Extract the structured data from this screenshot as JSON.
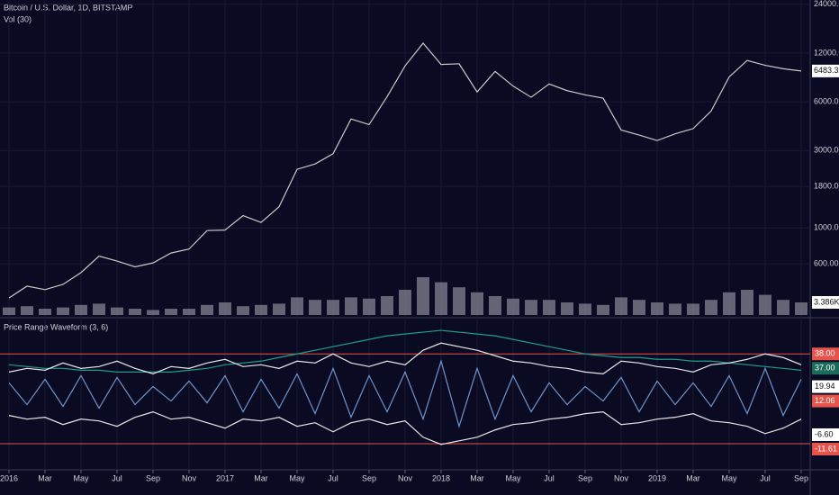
{
  "chart_data": [
    {
      "type": "line",
      "title": "Bitcoin / U.S. Dollar, 1D, BITSTAMP",
      "subtitle": "Vol (30)",
      "log_scale": true,
      "grid": true,
      "categories": [
        "2016",
        null,
        "Mar",
        null,
        "May",
        null,
        "Jul",
        null,
        "Sep",
        null,
        "Nov",
        null,
        "2017",
        null,
        "Mar",
        null,
        "May",
        null,
        "Jul",
        null,
        "Sep",
        null,
        "Nov",
        null,
        "2018",
        null,
        "Mar",
        null,
        "May",
        null,
        "Jul",
        null,
        "Sep",
        null,
        "Nov",
        null,
        "2019",
        null,
        "Mar",
        null,
        "May",
        null,
        "Jul",
        null,
        "Sep"
      ],
      "ylim": [
        290,
        25500
      ],
      "yticks": [
        {
          "value": 24000,
          "label": "24000.00"
        },
        {
          "value": 12000,
          "label": "12000.00"
        },
        {
          "value": 6000,
          "label": "6000.00"
        },
        {
          "value": 3000,
          "label": "3000.00"
        },
        {
          "value": 1800,
          "label": "1800.00"
        },
        {
          "value": 1000,
          "label": "1000.00"
        },
        {
          "value": 600,
          "label": "600.00"
        }
      ],
      "price_label": "6483.33",
      "volume_label": "3.386K",
      "y2lim": [
        0,
        250
      ],
      "series": [
        {
          "color": "#c9c9c9",
          "values": [
            370,
            437,
            416,
            448,
            530,
            670,
            624,
            575,
            608,
            700,
            740,
            963,
            970,
            1190,
            1080,
            1350,
            2300,
            2480,
            2870,
            4700,
            4340,
            6450,
            10000,
            13800,
            10200,
            10300,
            6900,
            9240,
            7500,
            6400,
            7730,
            7030,
            6620,
            6320,
            4020,
            3740,
            3460,
            3810,
            4100,
            5270,
            8550,
            10800,
            10080,
            9600,
            9300
          ]
        },
        {
          "color": "#8a8a9a",
          "axis": "y2",
          "values": [
            6,
            7,
            5,
            6,
            8,
            9,
            6,
            5,
            4,
            5,
            5,
            8,
            10,
            7,
            8,
            9,
            14,
            12,
            12,
            14,
            13,
            15,
            20,
            30,
            26,
            22,
            18,
            15,
            13,
            12,
            12,
            10,
            9,
            8,
            14,
            12,
            10,
            9,
            9,
            12,
            18,
            20,
            16,
            12,
            10
          ]
        }
      ]
    },
    {
      "type": "line",
      "title": "Price Range Waveform (3, 6)",
      "ylim": [
        -25,
        57
      ],
      "hlines": [
        38.0,
        -11.61
      ],
      "hline_color": "#e5534b",
      "tags": [
        {
          "value": 38.0,
          "label": "38.00",
          "color": "#e5534b"
        },
        {
          "value": 37.0,
          "label": "37.00",
          "color": "#1a6b5a"
        },
        {
          "value": 19.94,
          "label": "19.94",
          "color": "#ffffff"
        },
        {
          "value": 12.06,
          "label": "12.06",
          "color": "#e5534b"
        },
        {
          "value": -6.6,
          "label": "-6.60",
          "color": "#ffffff"
        },
        {
          "value": -11.61,
          "label": "-11.61",
          "color": "#e5534b"
        }
      ],
      "series": [
        {
          "color": "#6f93c9",
          "values": [
            22,
            10,
            24,
            9,
            26,
            8,
            25,
            10,
            20,
            12,
            23,
            11,
            26,
            6,
            24,
            8,
            27,
            5,
            30,
            3,
            26,
            6,
            28,
            2,
            34,
            -2,
            30,
            2,
            26,
            6,
            22,
            10,
            20,
            12,
            25,
            6,
            23,
            10,
            22,
            9,
            26,
            5,
            30,
            4,
            24
          ]
        },
        {
          "color": "#1f9e8a",
          "values": [
            32,
            31,
            30,
            30,
            29,
            29,
            28,
            28,
            28,
            28,
            29,
            30,
            32,
            33,
            34,
            36,
            38,
            40,
            42,
            44,
            46,
            48,
            49,
            50,
            51,
            50,
            49,
            48,
            46,
            44,
            42,
            40,
            38,
            37,
            36,
            36,
            35,
            35,
            34,
            34,
            33,
            32,
            31,
            30,
            29
          ]
        },
        {
          "color": "#e8e8e8",
          "values": [
            28,
            30,
            29,
            33,
            30,
            31,
            34,
            30,
            27,
            31,
            30,
            33,
            35,
            31,
            32,
            30,
            34,
            33,
            38,
            33,
            31,
            34,
            32,
            40,
            44,
            42,
            40,
            37,
            34,
            33,
            31,
            30,
            28,
            27,
            34,
            33,
            31,
            30,
            28,
            32,
            33,
            35,
            38,
            36,
            32
          ]
        },
        {
          "color": "#e8e8e8",
          "values": [
            4,
            2,
            3,
            -1,
            2,
            1,
            -2,
            3,
            6,
            2,
            3,
            0,
            -3,
            2,
            1,
            3,
            -2,
            0,
            -5,
            0,
            2,
            -1,
            1,
            -8,
            -12,
            -10,
            -8,
            -4,
            -1,
            0,
            2,
            3,
            5,
            6,
            -1,
            0,
            2,
            3,
            5,
            1,
            0,
            -2,
            -6,
            -3,
            2
          ]
        }
      ]
    }
  ]
}
